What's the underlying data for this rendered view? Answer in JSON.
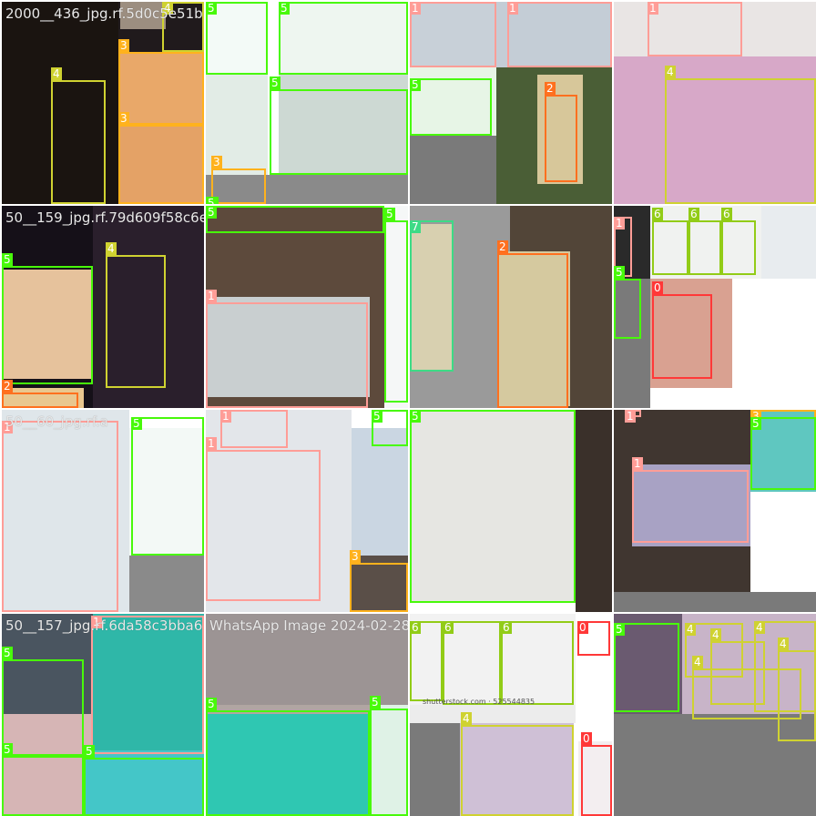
{
  "class_colors": {
    "0": "#ff3838",
    "1": "#ff9d97",
    "2": "#ff701f",
    "3": "#ffb21d",
    "4": "#cfd231",
    "5": "#48f90a",
    "6": "#92cc17",
    "7": "#3ddb86"
  },
  "tiles": [
    {
      "filename": "2000__436_jpg.rf.5d0c5e51b",
      "regions": [
        {
          "bg": "#1a1410"
        },
        {
          "bg": "#201a1c"
        },
        {
          "bg": "#e9a869"
        },
        {
          "bg": "#e4a266"
        },
        {
          "bg": "#9c8e80"
        }
      ],
      "boxes": [
        {
          "cls": "4",
          "label": "4"
        },
        {
          "cls": "3",
          "label": "3"
        },
        {
          "cls": "3",
          "label": "3"
        },
        {
          "cls": "4",
          "label": "4"
        }
      ]
    },
    {
      "filename": "",
      "regions": [
        {
          "bg": "#f3faf7"
        },
        {
          "bg": "#e2ece6"
        },
        {
          "bg": "#eef6f0"
        },
        {
          "bg": "#cdd9d3"
        },
        {
          "bg": "#8a8a8a"
        }
      ],
      "boxes": [
        {
          "cls": "5",
          "label": "5"
        },
        {
          "cls": "5",
          "label": "5"
        },
        {
          "cls": "5",
          "label": "5"
        },
        {
          "cls": "3",
          "label": "3"
        },
        {
          "cls": "5",
          "label": "5"
        }
      ]
    },
    {
      "filename": "",
      "regions": [
        {
          "bg": "#c8d0d8"
        },
        {
          "bg": "#c4cdd6"
        },
        {
          "bg": "#e7f5e6"
        },
        {
          "bg": "#4a5e36"
        },
        {
          "bg": "#d7c79a"
        },
        {
          "bg": "#7a7a7a"
        }
      ],
      "boxes": [
        {
          "cls": "1",
          "label": "1"
        },
        {
          "cls": "1",
          "label": "1"
        },
        {
          "cls": "5",
          "label": "5"
        },
        {
          "cls": "2",
          "label": "2"
        }
      ]
    },
    {
      "filename": "",
      "regions": [
        {
          "bg": "#e9e5e4"
        },
        {
          "bg": "#d7a8c8"
        }
      ],
      "boxes": [
        {
          "cls": "1",
          "label": "1"
        },
        {
          "cls": "4",
          "label": "4"
        }
      ]
    },
    {
      "filename": "50__159_jpg.rf.79d609f58c6e",
      "regions": [
        {
          "bg": "#151018"
        },
        {
          "bg": "#e6c29c"
        },
        {
          "bg": "#2a1f2c"
        },
        {
          "bg": "#e9c78f"
        }
      ],
      "boxes": [
        {
          "cls": "5",
          "label": "5"
        },
        {
          "cls": "4",
          "label": "4"
        },
        {
          "cls": "2",
          "label": "2"
        }
      ]
    },
    {
      "filename": "",
      "regions": [
        {
          "bg": "#5d4a3c"
        },
        {
          "bg": "#c9cfd0"
        },
        {
          "bg": "#f5f7f7"
        }
      ],
      "boxes": [
        {
          "cls": "5",
          "label": "5"
        },
        {
          "cls": "1",
          "label": "1"
        },
        {
          "cls": "5",
          "label": "5"
        }
      ]
    },
    {
      "filename": "",
      "regions": [
        {
          "bg": "#9a9a9a"
        },
        {
          "bg": "#d8d0b0"
        },
        {
          "bg": "#524538"
        },
        {
          "bg": "#d5c99f"
        }
      ],
      "boxes": [
        {
          "cls": "7",
          "label": "7"
        },
        {
          "cls": "2",
          "label": "2"
        }
      ]
    },
    {
      "filename": "",
      "regions": [
        {
          "bg": "#2a2a2a"
        },
        {
          "bg": "#f0f2f0"
        },
        {
          "bg": "#e8ecef"
        },
        {
          "bg": "#d9a191"
        },
        {
          "bg": "#7a7a7a"
        }
      ],
      "boxes": [
        {
          "cls": "1",
          "label": "1"
        },
        {
          "cls": "6",
          "label": "6"
        },
        {
          "cls": "6",
          "label": "6"
        },
        {
          "cls": "6",
          "label": "6"
        },
        {
          "cls": "5",
          "label": "5"
        },
        {
          "cls": "0",
          "label": "0"
        }
      ]
    },
    {
      "filename": "50__60_jpg.rf.a",
      "regions": [
        {
          "bg": "#dfe6ea"
        },
        {
          "bg": "#f3f9f6"
        },
        {
          "bg": "#8a8a8a"
        }
      ],
      "boxes": [
        {
          "cls": "1",
          "label": "1"
        },
        {
          "cls": "5",
          "label": "5"
        }
      ]
    },
    {
      "filename": "",
      "regions": [
        {
          "bg": "#e3e6ea"
        },
        {
          "bg": "#cad6e2"
        },
        {
          "bg": "#5a4f48"
        }
      ],
      "boxes": [
        {
          "cls": "1",
          "label": "1"
        },
        {
          "cls": "5",
          "label": "5"
        },
        {
          "cls": "1",
          "label": "1"
        },
        {
          "cls": "3",
          "label": "3"
        }
      ]
    },
    {
      "filename": "",
      "regions": [
        {
          "bg": "#e6e6e2"
        },
        {
          "bg": "#3a302a"
        }
      ],
      "boxes": [
        {
          "cls": "5",
          "label": "5"
        }
      ]
    },
    {
      "filename": "",
      "regions": [
        {
          "bg": "#403630"
        },
        {
          "bg": "#a8a2c4"
        },
        {
          "bg": "#5fc7c0"
        },
        {
          "bg": "#7a7a7a"
        }
      ],
      "boxes": [
        {
          "cls": "1",
          "label": "1"
        },
        {
          "cls": "1",
          "label": "1"
        },
        {
          "cls": "3",
          "label": "3"
        },
        {
          "cls": "5",
          "label": "5"
        }
      ]
    },
    {
      "filename": "50__157_jpg.rf.6da58c3bba6",
      "regions": [
        {
          "bg": "#4a5560"
        },
        {
          "bg": "#2fb7a8"
        },
        {
          "bg": "#d6b5b5"
        },
        {
          "bg": "#44c6c8"
        }
      ],
      "boxes": [
        {
          "cls": "1",
          "label": "1"
        },
        {
          "cls": "5",
          "label": "5"
        },
        {
          "cls": "5",
          "label": "5"
        },
        {
          "cls": "5",
          "label": "5"
        }
      ]
    },
    {
      "filename": "WhatsApp Image 2024-02-28",
      "regions": [
        {
          "bg": "#9c9494"
        },
        {
          "bg": "#b0a6a2"
        },
        {
          "bg": "#2fc7b2"
        },
        {
          "bg": "#dff2e6"
        }
      ],
      "boxes": [
        {
          "cls": "5",
          "label": "5"
        },
        {
          "cls": "5",
          "label": "5"
        }
      ]
    },
    {
      "filename": "",
      "regions": [
        {
          "bg": "#f2f2f2"
        },
        {
          "bg": "#ffffff"
        },
        {
          "bg": "#ececec"
        },
        {
          "bg": "#cfc0d6"
        },
        {
          "bg": "#f3eef0"
        },
        {
          "bg": "#7a7a7a"
        }
      ],
      "boxes": [
        {
          "cls": "6",
          "label": "6"
        },
        {
          "cls": "6",
          "label": "6"
        },
        {
          "cls": "6",
          "label": "6"
        },
        {
          "cls": "0",
          "label": "0"
        },
        {
          "cls": "4",
          "label": "4"
        },
        {
          "cls": "0",
          "label": "0"
        }
      ],
      "caption": "shutterstock.com · 525544835"
    },
    {
      "filename": "",
      "regions": [
        {
          "bg": "#6a5a70"
        },
        {
          "bg": "#c8b4c8"
        },
        {
          "bg": "#7a7a7a"
        }
      ],
      "boxes": [
        {
          "cls": "5",
          "label": "5"
        },
        {
          "cls": "4",
          "label": "4"
        },
        {
          "cls": "4",
          "label": "4"
        },
        {
          "cls": "4",
          "label": "4"
        },
        {
          "cls": "4",
          "label": "4"
        },
        {
          "cls": "4",
          "label": "4"
        }
      ]
    }
  ]
}
